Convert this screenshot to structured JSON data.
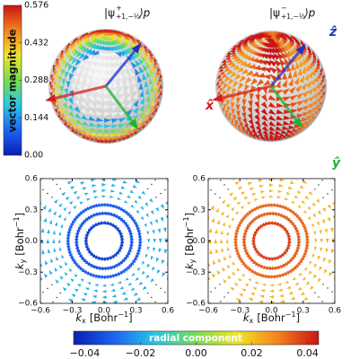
{
  "chart_data": [
    {
      "type": "sphere",
      "title": {
        "base": "|ψ",
        "sup": "+",
        "sub": "+1,−½",
        "end": "⟩p"
      }
    },
    {
      "type": "sphere",
      "title": {
        "base": "|ψ",
        "sup": "−",
        "sub": "+1,−½",
        "end": "⟩p"
      },
      "axis_labels": {
        "x": "x̂",
        "y": "ŷ",
        "z": "ẑ"
      }
    },
    {
      "type": "quiver",
      "xlim": [
        -0.6,
        0.6
      ],
      "ylim": [
        -0.6,
        0.6
      ],
      "xticks": [
        {
          "value": -0.6,
          "label": "−0.6"
        },
        {
          "value": -0.3,
          "label": "−0.3"
        },
        {
          "value": 0,
          "label": "0.0"
        },
        0.3,
        0.6
      ],
      "yticks": [
        {
          "value": -0.6,
          "label": "−0.6"
        },
        {
          "value": -0.3,
          "label": "−0.3"
        },
        {
          "value": 0,
          "label": "0.0"
        },
        0.3,
        0.6
      ],
      "xlabel": {
        "symbol": "k",
        "sub": "x",
        "unit": "[Bohr",
        "sup": "−1",
        "close": "]"
      },
      "ylabel": {
        "symbol": "k",
        "sub": "y",
        "unit": "[Bohr",
        "sup": "−1",
        "close": "]"
      },
      "rings": {
        "radius": [
          0.17,
          0.26,
          0.34
        ],
        "radial": [
          -0.036,
          -0.032,
          -0.03
        ]
      },
      "field_radial": -0.018
    },
    {
      "type": "quiver",
      "xlim": [
        -0.6,
        0.6
      ],
      "ylim": [
        -0.6,
        0.6
      ],
      "xticks": [
        {
          "value": -0.6,
          "label": "−0.6"
        },
        {
          "value": -0.3,
          "label": "−0.3"
        },
        {
          "value": 0,
          "label": "0.0"
        },
        0.3,
        0.6
      ],
      "yticks": [
        {
          "value": -0.6,
          "label": "−0.6"
        },
        {
          "value": -0.3,
          "label": "−0.3"
        },
        {
          "value": 0,
          "label": "0.0"
        },
        0.3,
        0.6
      ],
      "xlabel": {
        "symbol": "k",
        "sub": "x",
        "unit": "[Bohr",
        "sup": "−1",
        "close": "]"
      },
      "ylabel": {
        "symbol": "k",
        "sub": "y",
        "unit": "[Bohr",
        "sup": "−1",
        "close": "]"
      },
      "rings": {
        "radius": [
          0.17,
          0.26,
          0.34
        ],
        "radial": [
          0.038,
          0.034,
          0.033
        ]
      },
      "field_radial": 0.022
    }
  ],
  "top_colorbar": {
    "label": "vector magnitude",
    "lim": [
      0,
      0.576
    ],
    "ticks": [
      {
        "value": 0,
        "label": "0.00"
      },
      0.144,
      0.288,
      0.432,
      0.576
    ],
    "colormap": [
      "#0a1eb4",
      "#1e64f0",
      "#28c8e6",
      "#78dc50",
      "#f0e628",
      "#f5821e",
      "#c81414"
    ]
  },
  "bottom_colorbar": {
    "label": "radial component",
    "lim": [
      -0.044,
      0.044
    ],
    "ticks": [
      {
        "value": -0.04,
        "label": "−0.04"
      },
      {
        "value": -0.02,
        "label": "−0.02"
      },
      {
        "value": 0,
        "label": "0.00"
      },
      0.02,
      0.04
    ],
    "colormap": [
      "#0a1eb4",
      "#1e64f0",
      "#28c8e6",
      "#78dc50",
      "#f0e628",
      "#f5821e",
      "#c81414"
    ]
  }
}
